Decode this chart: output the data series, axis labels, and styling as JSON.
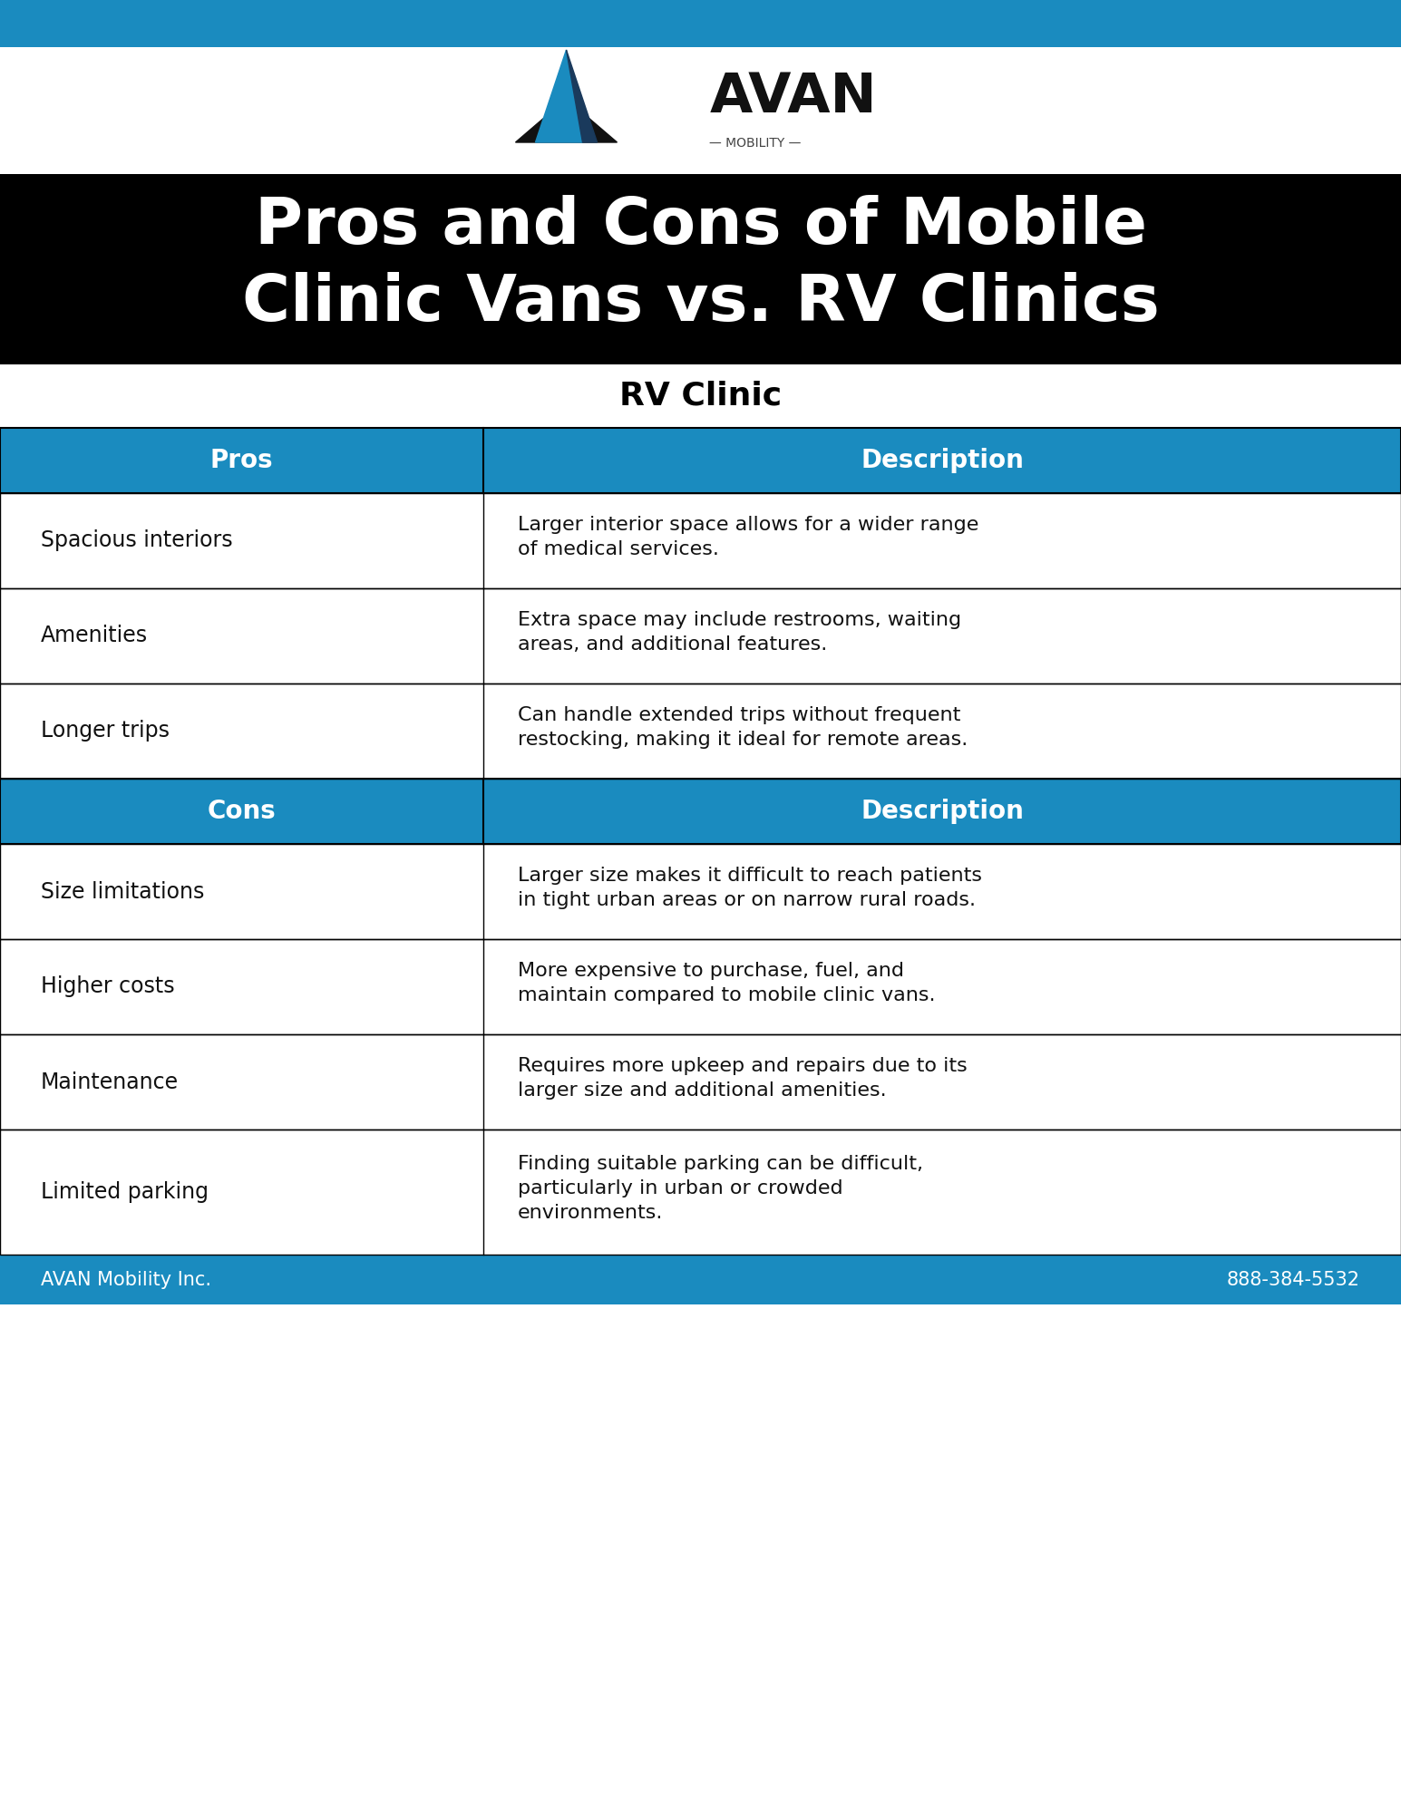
{
  "title": "Pros and Cons of Mobile\nClinic Vans vs. RV Clinics",
  "section_title": "RV Clinic",
  "top_bar_color": "#1a8bbf",
  "title_bg": "#000000",
  "title_color": "#ffffff",
  "section_title_color": "#000000",
  "table_header_bg": "#1a8bbf",
  "table_header_color": "#ffffff",
  "table_border_color": "#000000",
  "footer_bg": "#1a8bbf",
  "footer_text_color": "#ffffff",
  "footer_left": "AVAN Mobility Inc.",
  "footer_right": "888-384-5532",
  "pros_header": "Pros",
  "cons_header": "Cons",
  "desc_header": "Description",
  "pros_rows": [
    {
      "label": "Spacious interiors",
      "desc": "Larger interior space allows for a wider range\nof medical services."
    },
    {
      "label": "Amenities",
      "desc": "Extra space may include restrooms, waiting\nareas, and additional features."
    },
    {
      "label": "Longer trips",
      "desc": "Can handle extended trips without frequent\nrestocking, making it ideal for remote areas."
    }
  ],
  "cons_rows": [
    {
      "label": "Size limitations",
      "desc": "Larger size makes it difficult to reach patients\nin tight urban areas or on narrow rural roads."
    },
    {
      "label": "Higher costs",
      "desc": "More expensive to purchase, fuel, and\nmaintain compared to mobile clinic vans."
    },
    {
      "label": "Maintenance",
      "desc": "Requires more upkeep and repairs due to its\nlarger size and additional amenities."
    },
    {
      "label": "Limited parking",
      "desc": "Finding suitable parking can be difficult,\nparticularly in urban or crowded\nenvironments."
    }
  ]
}
